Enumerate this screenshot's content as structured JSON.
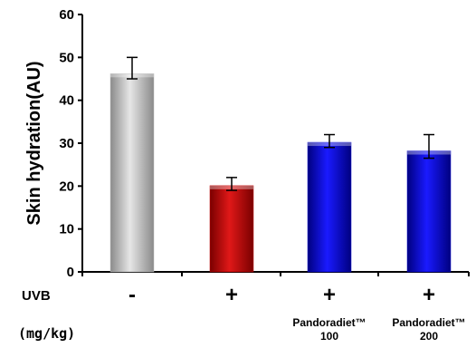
{
  "chart_data": {
    "type": "bar",
    "categories": [
      "-",
      "+",
      "+",
      "+"
    ],
    "values": [
      46.2,
      20.1,
      30.2,
      28.2
    ],
    "errors": [
      [
        45.0,
        50.0
      ],
      [
        19.0,
        22.0
      ],
      [
        29.0,
        32.0
      ],
      [
        26.5,
        32.0
      ]
    ],
    "bar_colors": [
      "#bdbdbd",
      "#c00000",
      "#0a0ad0",
      "#0a0ad0"
    ],
    "ylabel": "Skin hydration(AU)",
    "ylim": [
      0,
      60
    ],
    "yticks": [
      "0",
      "10",
      "20",
      "30",
      "40",
      "50",
      "60"
    ],
    "grid": false,
    "legend": "none"
  },
  "rows": {
    "uvb_label": "UVB",
    "uvb_values": [
      "-",
      "+",
      "+",
      "+"
    ],
    "dose_label": "(mg/kg)",
    "dose_values": [
      {
        "line1": "",
        "line2": ""
      },
      {
        "line1": "",
        "line2": ""
      },
      {
        "line1": "Pandoradiet™",
        "line2": "100"
      },
      {
        "line1": "Pandoradiet™",
        "line2": "200"
      }
    ]
  }
}
